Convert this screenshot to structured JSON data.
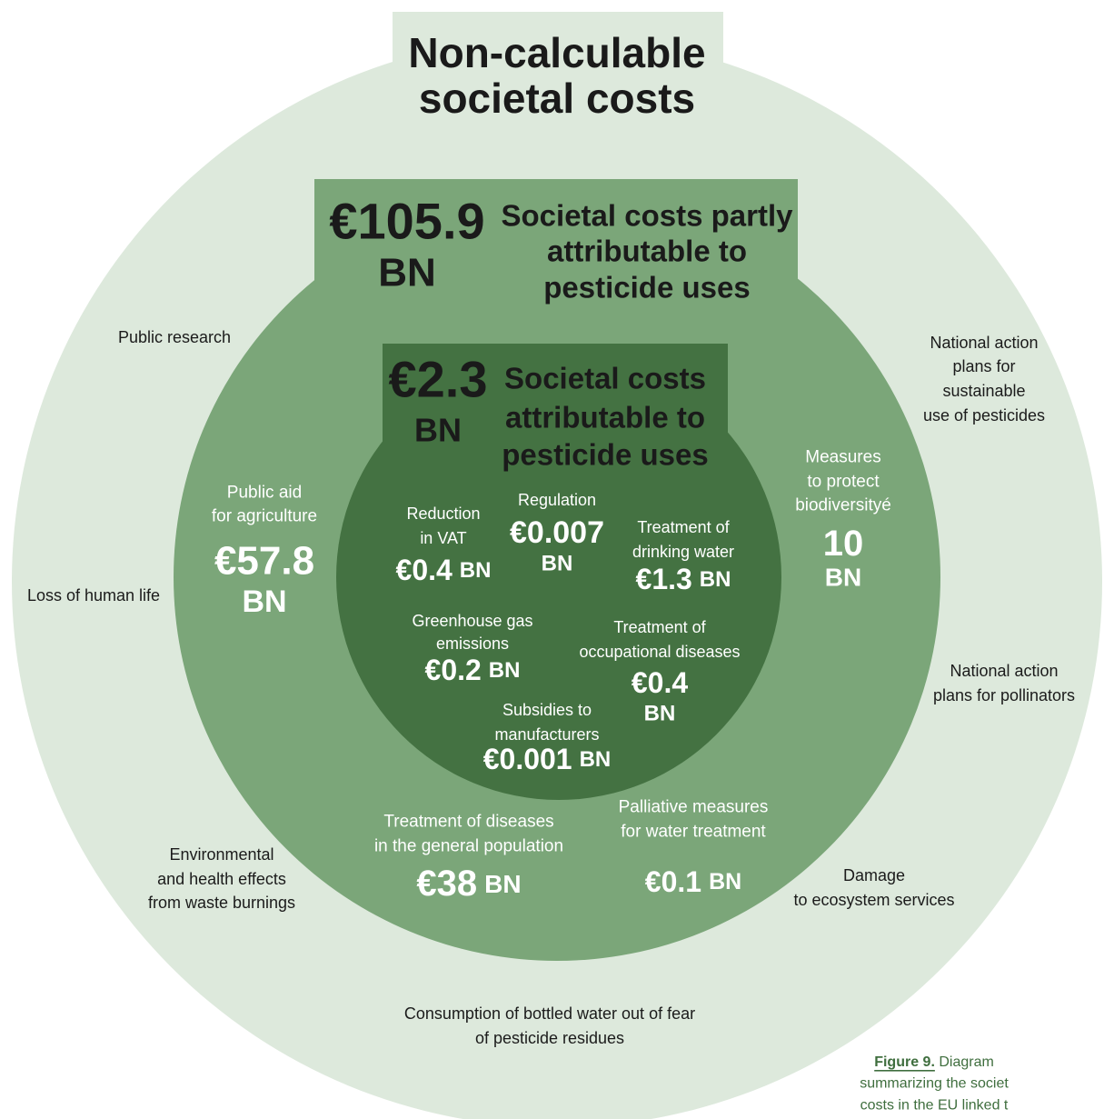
{
  "title": [
    "Non-calculable",
    "societal costs"
  ],
  "partly": {
    "amount": "€105.9",
    "unit": "BN",
    "label": [
      "Societal costs partly",
      "attributable to",
      "pesticide uses"
    ]
  },
  "attributable": {
    "amount": "€2.3",
    "unit": "BN",
    "label": [
      "Societal costs",
      "attributable to",
      "pesticide uses"
    ]
  },
  "outer_items": [
    {
      "label": [
        "Public research"
      ]
    },
    {
      "label": [
        "Loss of human life"
      ]
    },
    {
      "label": [
        "Environmental",
        "and health effects",
        "from waste burnings"
      ]
    },
    {
      "label": [
        "Consumption of bottled water out of fear",
        "of pesticide residues"
      ]
    },
    {
      "label": [
        "Damage",
        "to ecosystem services"
      ]
    },
    {
      "label": [
        "National action",
        "plans for pollinators"
      ]
    },
    {
      "label": [
        "National action",
        "plans for",
        "sustainable",
        "use of pesticides"
      ]
    }
  ],
  "middle_items": [
    {
      "label": [
        "Public aid",
        "for agriculture"
      ],
      "amount": "€57.8",
      "unit": "BN"
    },
    {
      "label": [
        "Measures",
        "to protect",
        "biodiversityé"
      ],
      "amount": "10",
      "unit": "BN"
    },
    {
      "label": [
        "Treatment of diseases",
        "in the general population"
      ],
      "amount": "€38",
      "unit": "BN"
    },
    {
      "label": [
        "Palliative measures",
        "for water treatment"
      ],
      "amount": "€0.1",
      "unit": "BN"
    }
  ],
  "inner_items": [
    {
      "label": [
        "Reduction",
        "in VAT"
      ],
      "amount": "€0.4",
      "unit": "BN"
    },
    {
      "label": [
        "Regulation"
      ],
      "amount": "€0.007",
      "unit": "BN"
    },
    {
      "label": [
        "Treatment of",
        "drinking water"
      ],
      "amount": "€1.3",
      "unit": "BN"
    },
    {
      "label": [
        "Greenhouse gas",
        "emissions"
      ],
      "amount": "€0.2",
      "unit": "BN"
    },
    {
      "label": [
        "Treatment of",
        "occupational diseases"
      ],
      "amount": "€0.4",
      "unit": "BN"
    },
    {
      "label": [
        "Subsidies to",
        "manufacturers"
      ],
      "amount": "€0.001",
      "unit": "BN"
    }
  ],
  "caption": {
    "figure": "Figure 9.",
    "lines": [
      " Diagram",
      "summarizing the societ",
      "costs in the EU linked t"
    ]
  }
}
